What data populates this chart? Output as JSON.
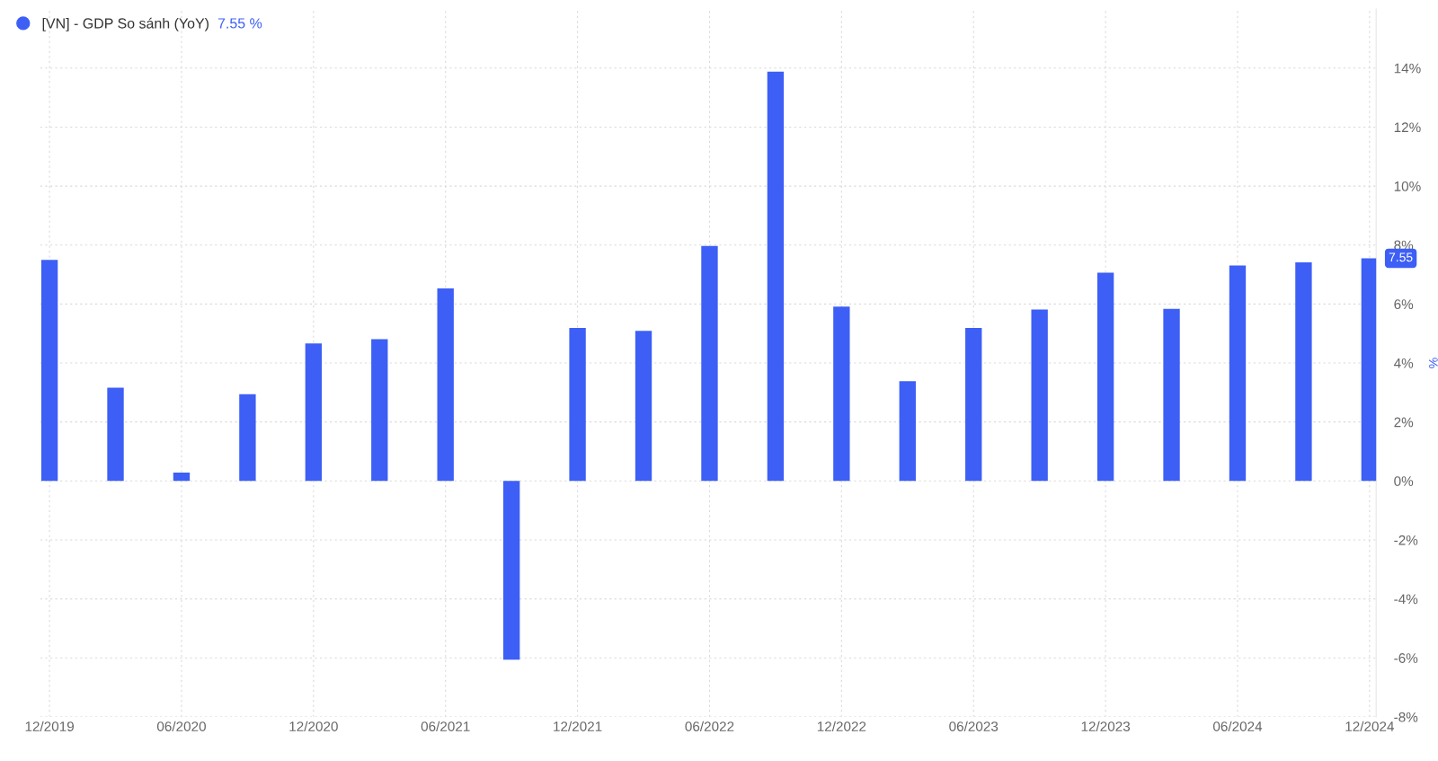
{
  "chart_data": {
    "type": "bar",
    "categories": [
      "12/2019",
      null,
      "06/2020",
      null,
      "12/2020",
      null,
      "06/2021",
      null,
      "12/2021",
      null,
      "06/2022",
      null,
      "12/2022",
      null,
      "06/2023",
      null,
      "12/2023",
      null,
      "06/2024",
      null,
      "12/2024"
    ],
    "series": [
      {
        "name": "[VN] - GDP So sánh (YoY)",
        "color": "#3d5ff5",
        "values": [
          7.5,
          3.16,
          0.28,
          2.94,
          4.66,
          4.81,
          6.53,
          -6.06,
          5.19,
          5.09,
          7.97,
          13.88,
          5.91,
          3.38,
          5.19,
          5.81,
          7.06,
          5.84,
          7.31,
          7.41,
          7.55
        ]
      }
    ],
    "ylim": [
      -8,
      16
    ],
    "yticks": [
      {
        "value": -8,
        "label": "-8%"
      },
      {
        "value": -6,
        "label": "-6%"
      },
      {
        "value": -4,
        "label": "-4%"
      },
      {
        "value": -2,
        "label": "-2%"
      },
      {
        "value": 0,
        "label": "0%"
      },
      {
        "value": 2,
        "label": "2%"
      },
      {
        "value": 4,
        "label": "4%"
      },
      {
        "value": 6,
        "label": "6%"
      },
      {
        "value": 8,
        "label": "8%"
      },
      {
        "value": 10,
        "label": "10%"
      },
      {
        "value": 12,
        "label": "12%"
      },
      {
        "value": 14,
        "label": "14%"
      }
    ],
    "y2label": "%",
    "grid": true,
    "legend": "top left",
    "annotations": [
      "7.55 %",
      "7.55"
    ]
  }
}
